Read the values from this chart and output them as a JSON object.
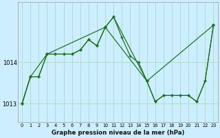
{
  "xlabel": "Graphe pression niveau de la mer (hPa)",
  "bg_color": "#cceeff",
  "grid_color": "#aaddcc",
  "line_color": "#1a6b1a",
  "ylim": [
    1012.55,
    1015.45
  ],
  "yticks": [
    1013,
    1014
  ],
  "xlim": [
    -0.5,
    23.5
  ],
  "xticks": [
    0,
    1,
    2,
    3,
    4,
    5,
    6,
    7,
    8,
    9,
    10,
    11,
    12,
    13,
    14,
    15,
    16,
    17,
    18,
    19,
    20,
    21,
    22,
    23
  ],
  "s1_x": [
    0,
    1,
    2,
    3,
    4,
    5,
    6,
    7,
    8,
    9,
    10,
    11,
    12,
    13,
    14,
    15,
    16,
    17,
    18,
    19,
    20,
    21,
    22,
    23
  ],
  "s1_y": [
    1013.0,
    1013.65,
    1013.65,
    1014.2,
    1014.2,
    1014.2,
    1014.2,
    1014.3,
    1014.55,
    1014.4,
    1014.85,
    1015.1,
    1014.6,
    1014.15,
    1014.0,
    1013.55,
    1013.05,
    1013.2,
    1013.2,
    1013.2,
    1013.2,
    1013.05,
    1013.55,
    1014.9
  ],
  "s2_x": [
    0,
    1,
    2,
    3,
    4,
    5,
    6,
    7,
    8,
    9,
    10,
    15,
    16,
    17,
    18,
    19,
    20,
    21,
    22,
    23
  ],
  "s2_y": [
    1013.0,
    1013.65,
    1013.65,
    1014.2,
    1014.2,
    1014.2,
    1014.2,
    1014.3,
    1014.55,
    1014.4,
    1014.85,
    1013.55,
    1013.05,
    1013.2,
    1013.2,
    1013.2,
    1013.2,
    1013.05,
    1013.55,
    1014.9
  ],
  "s3_x": [
    0,
    1,
    3,
    10,
    11,
    15,
    23
  ],
  "s3_y": [
    1013.0,
    1013.65,
    1014.2,
    1014.85,
    1015.1,
    1013.55,
    1014.9
  ]
}
